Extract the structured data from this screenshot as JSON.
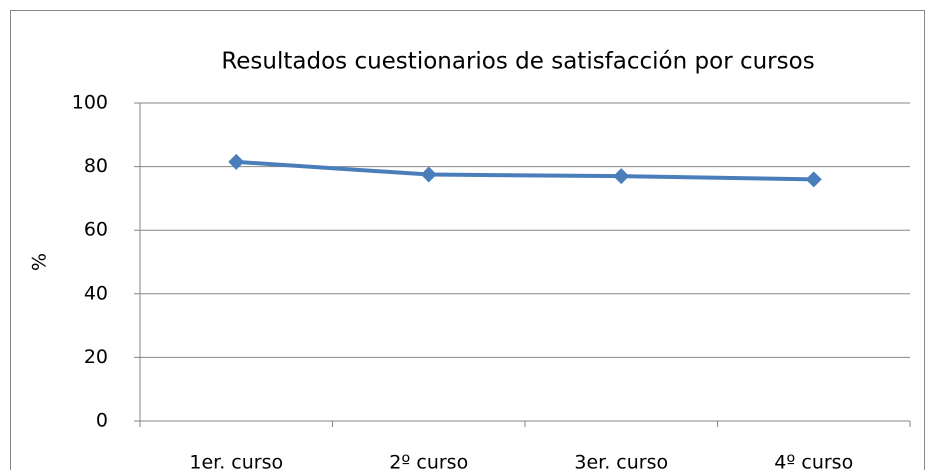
{
  "chart_data": {
    "type": "line",
    "title": "Resultados cuestionarios de satisfacción por cursos",
    "y_label": "%",
    "categories": [
      "1er. curso",
      "2º curso",
      "3er. curso",
      "4º curso"
    ],
    "values": [
      81.5,
      77.5,
      77,
      76
    ],
    "color": "#4a7ebb",
    "ylim": [
      0,
      100
    ],
    "yticks": [
      0,
      20,
      40,
      60,
      80,
      100
    ],
    "grid": true
  }
}
